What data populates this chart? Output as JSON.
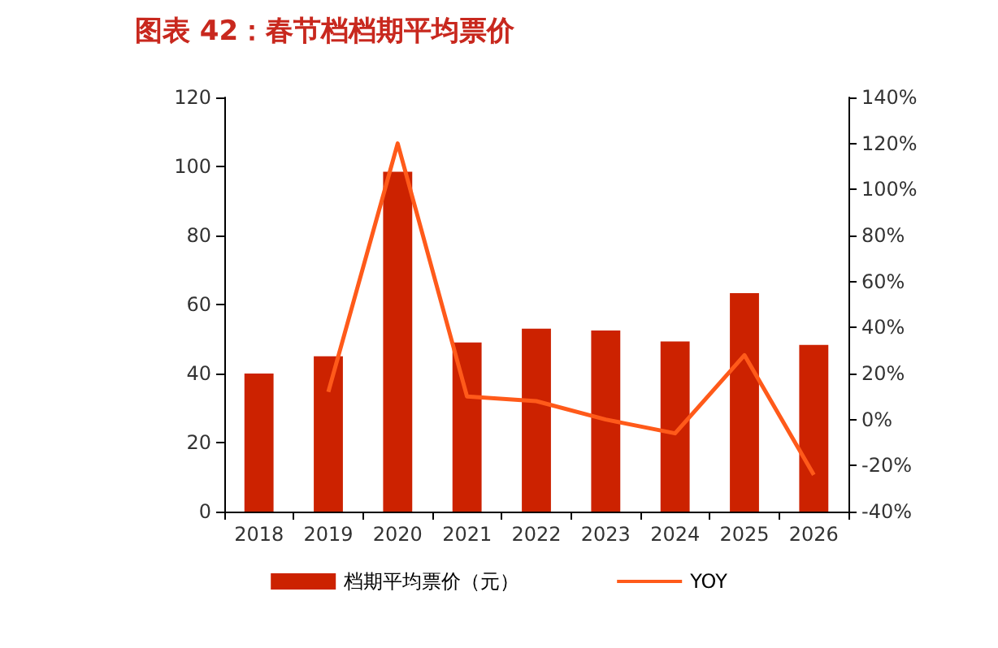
{
  "chart_data": {
    "type": "bar",
    "title": "图表 42：春节档档期平均票价",
    "categories": [
      "2018",
      "2019",
      "2020",
      "2021",
      "2022",
      "2023",
      "2024",
      "2025",
      "2026"
    ],
    "series": [
      {
        "name": "档期平均票价（元）",
        "color": "#cc2200",
        "values": [
          40,
          45,
          98.5,
          49,
          53,
          52.5,
          49.3,
          63.3,
          48.3
        ]
      },
      {
        "name": "YOY",
        "type": "line",
        "axis": "y2",
        "color": "#ff5a1a",
        "values": [
          null,
          12,
          120,
          10,
          8,
          0,
          -6,
          28,
          -24
        ]
      }
    ],
    "ylim": [
      0,
      120
    ],
    "yticks": [
      0,
      20,
      40,
      60,
      80,
      100,
      120
    ],
    "y2lim": [
      -40,
      140
    ],
    "y2ticks": [
      {
        "value": -40,
        "label": "-40%"
      },
      {
        "value": -20,
        "label": "-20%"
      },
      {
        "value": 0,
        "label": "0%"
      },
      {
        "value": 20,
        "label": "20%"
      },
      {
        "value": 40,
        "label": "40%"
      },
      {
        "value": 60,
        "label": "60%"
      },
      {
        "value": 80,
        "label": "80%"
      },
      {
        "value": 100,
        "label": "100%"
      },
      {
        "value": 120,
        "label": "120%"
      },
      {
        "value": 140,
        "label": "140%"
      }
    ],
    "legend": "bottom",
    "grid": false,
    "marker": "none",
    "line_style": "solid"
  }
}
